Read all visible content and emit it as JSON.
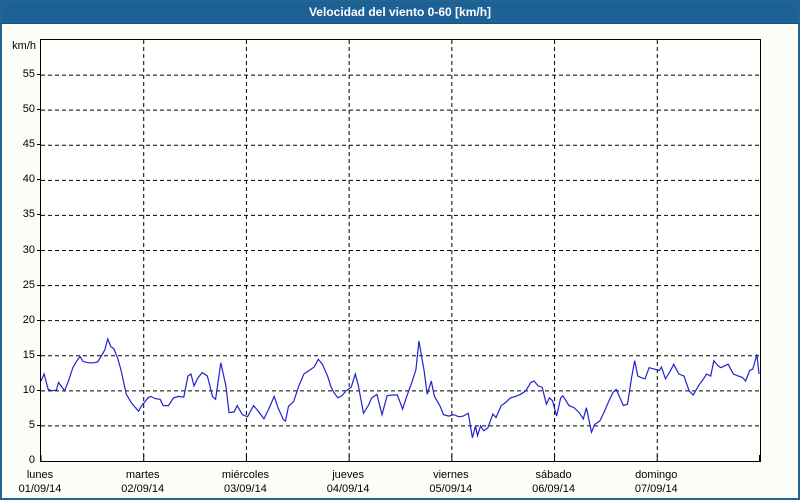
{
  "window": {
    "title": "Velocidad del viento 0-60 [km/h]"
  },
  "colors": {
    "titlebar_bg": "#1d6296",
    "titlebar_text": "#ffffff",
    "outer_border": "#27638f",
    "page_bg": "#fdfdf7",
    "plot_bg": "#ffffff",
    "grid": "#000000",
    "line": "#2222cc"
  },
  "chart_data": {
    "type": "line",
    "title": "Velocidad del viento 0-60 [km/h]",
    "xlabel": "",
    "ylabel": "km/h",
    "ylim": [
      0,
      60
    ],
    "ytick_step": 5,
    "grid": true,
    "legend": false,
    "x_days": [
      {
        "name": "lunes",
        "date": "01/09/14"
      },
      {
        "name": "martes",
        "date": "02/09/14"
      },
      {
        "name": "miércoles",
        "date": "03/09/14"
      },
      {
        "name": "jueves",
        "date": "04/09/14"
      },
      {
        "name": "viernes",
        "date": "05/09/14"
      },
      {
        "name": "sábado",
        "date": "06/09/14"
      },
      {
        "name": "domingo",
        "date": "07/09/14"
      }
    ],
    "series": [
      {
        "name": "velocidad del viento",
        "units": "km/h",
        "color": "#2222cc",
        "x_units": "days from 01/09/14",
        "points": [
          [
            0.0,
            11.4
          ],
          [
            0.03,
            12.4
          ],
          [
            0.07,
            10.2
          ],
          [
            0.11,
            10.0
          ],
          [
            0.15,
            10.1
          ],
          [
            0.17,
            11.2
          ],
          [
            0.21,
            10.4
          ],
          [
            0.23,
            10.0
          ],
          [
            0.27,
            11.5
          ],
          [
            0.31,
            13.3
          ],
          [
            0.35,
            14.3
          ],
          [
            0.38,
            14.9
          ],
          [
            0.41,
            14.2
          ],
          [
            0.46,
            14.0
          ],
          [
            0.51,
            14.0
          ],
          [
            0.55,
            14.1
          ],
          [
            0.58,
            14.8
          ],
          [
            0.62,
            15.8
          ],
          [
            0.65,
            17.4
          ],
          [
            0.68,
            16.3
          ],
          [
            0.71,
            16.0
          ],
          [
            0.75,
            14.5
          ],
          [
            0.78,
            12.9
          ],
          [
            0.83,
            9.5
          ],
          [
            0.88,
            8.3
          ],
          [
            0.92,
            7.6
          ],
          [
            0.95,
            7.1
          ],
          [
            0.98,
            7.9
          ],
          [
            1.02,
            8.6
          ],
          [
            1.04,
            9.0
          ],
          [
            1.07,
            9.2
          ],
          [
            1.11,
            8.9
          ],
          [
            1.16,
            8.8
          ],
          [
            1.19,
            7.9
          ],
          [
            1.24,
            7.9
          ],
          [
            1.29,
            9.0
          ],
          [
            1.34,
            9.2
          ],
          [
            1.39,
            9.1
          ],
          [
            1.43,
            12.1
          ],
          [
            1.46,
            12.4
          ],
          [
            1.49,
            10.7
          ],
          [
            1.53,
            11.9
          ],
          [
            1.57,
            12.6
          ],
          [
            1.62,
            12.1
          ],
          [
            1.67,
            9.2
          ],
          [
            1.7,
            8.8
          ],
          [
            1.75,
            14.0
          ],
          [
            1.8,
            10.7
          ],
          [
            1.83,
            6.9
          ],
          [
            1.88,
            7.0
          ],
          [
            1.91,
            7.9
          ],
          [
            1.96,
            6.6
          ],
          [
            2.01,
            6.3
          ],
          [
            2.07,
            7.9
          ],
          [
            2.12,
            7.0
          ],
          [
            2.17,
            6.0
          ],
          [
            2.22,
            7.5
          ],
          [
            2.27,
            9.2
          ],
          [
            2.31,
            7.5
          ],
          [
            2.36,
            5.9
          ],
          [
            2.38,
            5.7
          ],
          [
            2.41,
            7.8
          ],
          [
            2.46,
            8.5
          ],
          [
            2.51,
            10.7
          ],
          [
            2.56,
            12.4
          ],
          [
            2.61,
            12.9
          ],
          [
            2.66,
            13.4
          ],
          [
            2.7,
            14.5
          ],
          [
            2.74,
            13.8
          ],
          [
            2.79,
            12.1
          ],
          [
            2.82,
            10.7
          ],
          [
            2.85,
            9.8
          ],
          [
            2.89,
            9.0
          ],
          [
            2.93,
            9.3
          ],
          [
            2.97,
            10.0
          ],
          [
            3.02,
            10.5
          ],
          [
            3.06,
            12.4
          ],
          [
            3.09,
            10.7
          ],
          [
            3.14,
            6.8
          ],
          [
            3.19,
            8.0
          ],
          [
            3.22,
            9.0
          ],
          [
            3.27,
            9.5
          ],
          [
            3.32,
            6.6
          ],
          [
            3.37,
            9.3
          ],
          [
            3.42,
            9.4
          ],
          [
            3.47,
            9.4
          ],
          [
            3.52,
            7.4
          ],
          [
            3.56,
            9.2
          ],
          [
            3.61,
            11.2
          ],
          [
            3.65,
            13.0
          ],
          [
            3.68,
            17.1
          ],
          [
            3.71,
            14.5
          ],
          [
            3.73,
            12.9
          ],
          [
            3.76,
            9.5
          ],
          [
            3.8,
            11.4
          ],
          [
            3.83,
            9.2
          ],
          [
            3.88,
            8.0
          ],
          [
            3.92,
            6.6
          ],
          [
            3.97,
            6.4
          ],
          [
            4.02,
            6.6
          ],
          [
            4.07,
            6.3
          ],
          [
            4.11,
            6.4
          ],
          [
            4.16,
            6.8
          ],
          [
            4.2,
            3.3
          ],
          [
            4.23,
            5.0
          ],
          [
            4.25,
            3.6
          ],
          [
            4.28,
            5.0
          ],
          [
            4.31,
            4.3
          ],
          [
            4.35,
            4.7
          ],
          [
            4.4,
            6.7
          ],
          [
            4.43,
            6.2
          ],
          [
            4.48,
            7.9
          ],
          [
            4.52,
            8.3
          ],
          [
            4.57,
            9.0
          ],
          [
            4.62,
            9.2
          ],
          [
            4.67,
            9.5
          ],
          [
            4.72,
            10.0
          ],
          [
            4.77,
            11.2
          ],
          [
            4.8,
            11.4
          ],
          [
            4.84,
            10.7
          ],
          [
            4.88,
            10.5
          ],
          [
            4.92,
            8.1
          ],
          [
            4.95,
            9.0
          ],
          [
            4.98,
            8.6
          ],
          [
            5.02,
            6.4
          ],
          [
            5.06,
            9.0
          ],
          [
            5.08,
            9.3
          ],
          [
            5.14,
            7.9
          ],
          [
            5.19,
            7.6
          ],
          [
            5.24,
            6.9
          ],
          [
            5.28,
            6.0
          ],
          [
            5.31,
            7.6
          ],
          [
            5.36,
            4.1
          ],
          [
            5.39,
            5.2
          ],
          [
            5.44,
            5.7
          ],
          [
            5.48,
            6.9
          ],
          [
            5.53,
            8.6
          ],
          [
            5.57,
            9.8
          ],
          [
            5.6,
            10.2
          ],
          [
            5.67,
            7.9
          ],
          [
            5.71,
            8.1
          ],
          [
            5.75,
            11.9
          ],
          [
            5.78,
            14.3
          ],
          [
            5.81,
            12.1
          ],
          [
            5.84,
            11.9
          ],
          [
            5.88,
            11.7
          ],
          [
            5.92,
            13.3
          ],
          [
            5.97,
            13.1
          ],
          [
            6.02,
            12.9
          ],
          [
            6.04,
            13.4
          ],
          [
            6.08,
            11.7
          ],
          [
            6.13,
            12.9
          ],
          [
            6.16,
            13.8
          ],
          [
            6.21,
            12.4
          ],
          [
            6.26,
            12.1
          ],
          [
            6.31,
            10.0
          ],
          [
            6.35,
            9.4
          ],
          [
            6.4,
            10.7
          ],
          [
            6.45,
            11.7
          ],
          [
            6.48,
            12.4
          ],
          [
            6.52,
            12.1
          ],
          [
            6.55,
            14.3
          ],
          [
            6.59,
            13.6
          ],
          [
            6.62,
            13.3
          ],
          [
            6.66,
            13.6
          ],
          [
            6.69,
            13.8
          ],
          [
            6.74,
            12.4
          ],
          [
            6.79,
            12.1
          ],
          [
            6.83,
            11.9
          ],
          [
            6.86,
            11.4
          ],
          [
            6.9,
            12.9
          ],
          [
            6.93,
            13.1
          ],
          [
            6.97,
            15.2
          ],
          [
            6.99,
            12.4
          ]
        ]
      }
    ]
  }
}
